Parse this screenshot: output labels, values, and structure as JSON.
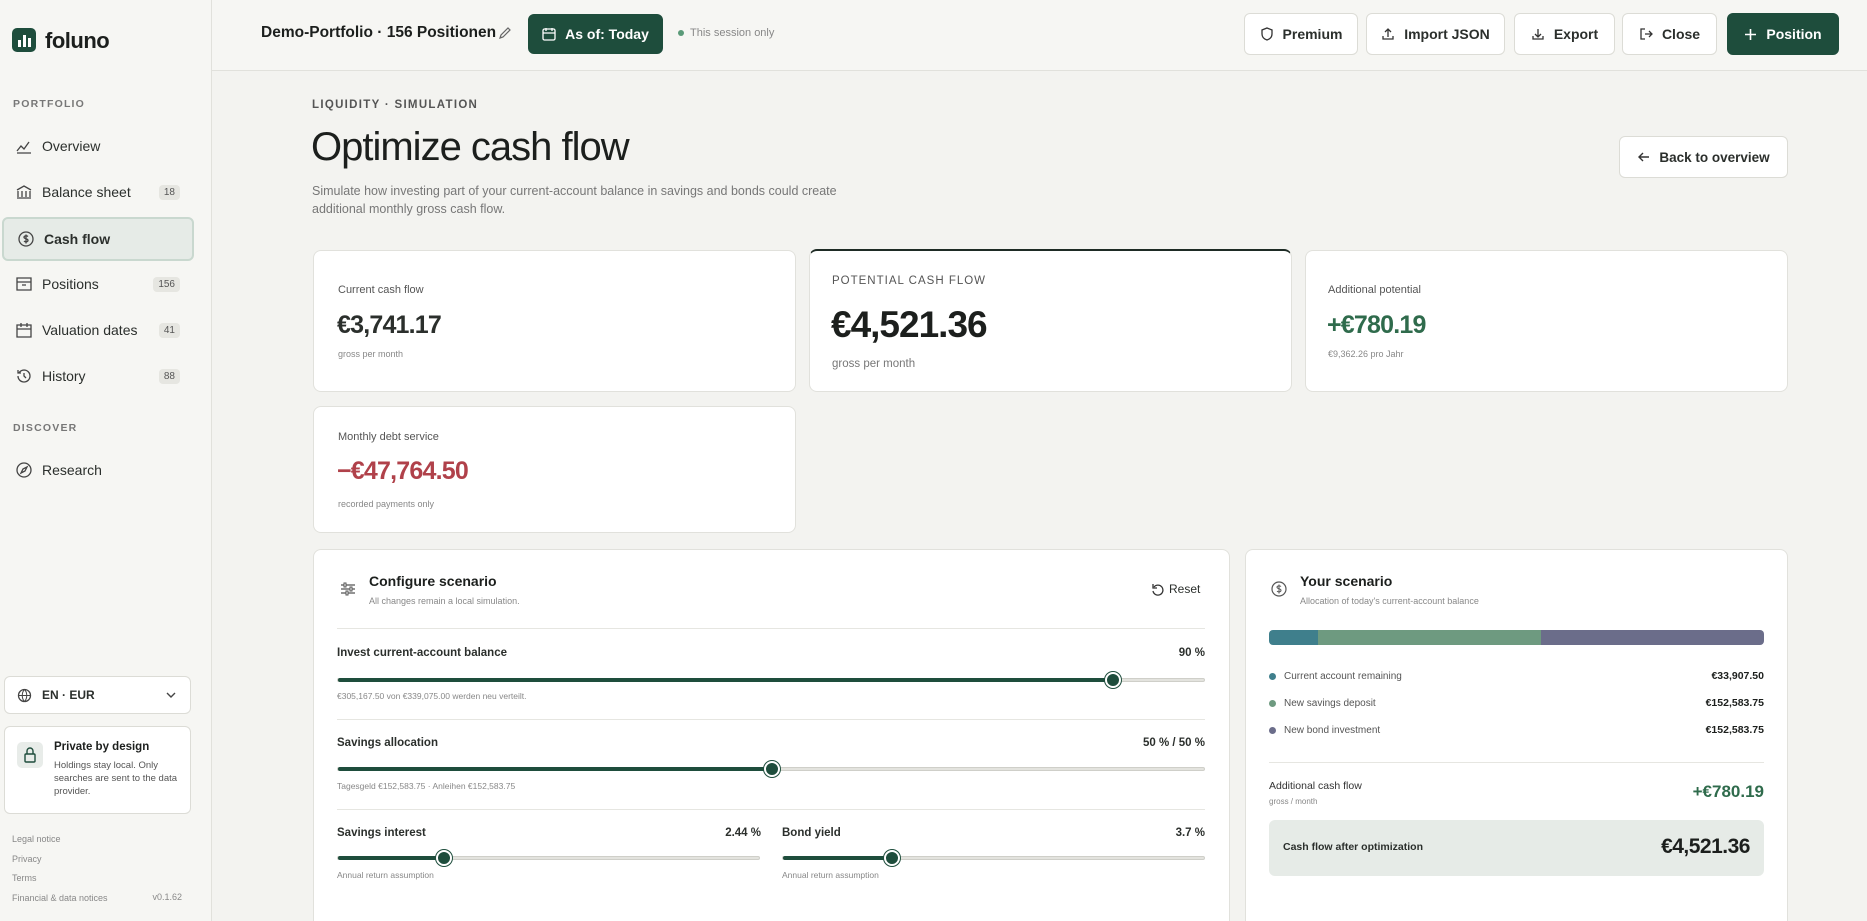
{
  "header": {
    "portfolio": "Demo-Portfolio · 156 Positionen",
    "as_of": "As of: Today",
    "session": "This session only",
    "actions": [
      "Premium",
      "Import JSON",
      "Export",
      "Close",
      "Position"
    ]
  },
  "sidebar": {
    "brand": "foluno",
    "sections": [
      {
        "title": "PORTFOLIO",
        "items": [
          {
            "label": "Overview"
          },
          {
            "label": "Balance sheet",
            "badge": 18
          },
          {
            "label": "Cash flow"
          },
          {
            "label": "Positions",
            "badge": 156
          },
          {
            "label": "Valuation dates",
            "badge": 41
          },
          {
            "label": "History",
            "badge": 88
          }
        ]
      },
      {
        "title": "DISCOVER",
        "items": [
          {
            "label": "Research"
          }
        ]
      }
    ],
    "language": "EN · EUR",
    "privacy": {
      "title": "Private by design",
      "text": "Holdings stay local. Only searches are sent to the data provider."
    },
    "footer": [
      "Legal notice",
      "Privacy",
      "Terms",
      "Financial & data notices"
    ],
    "version": "v0.1.62"
  },
  "page": {
    "eyebrow": "LIQUIDITY · SIMULATION",
    "title": "Optimize cash flow",
    "description": "Simulate how investing part of your current-account balance in savings and bonds could create additional monthly gross cash flow.",
    "back": "Back to overview"
  },
  "metrics": [
    {
      "label": "Current cash flow",
      "value": "€3,741.17",
      "note": "gross per month"
    },
    {
      "label": "POTENTIAL CASH FLOW",
      "value": "€4,521.36",
      "note": "gross per month"
    },
    {
      "label": "Additional potential",
      "value": "+€780.19",
      "note": "€9,362.26 pro Jahr"
    },
    {
      "label": "Monthly debt service",
      "value": "−€47,764.50",
      "note": "recorded payments only"
    }
  ],
  "configure": {
    "title": "Configure scenario",
    "subtitle": "All changes remain a local simulation.",
    "reset": "Reset",
    "invest": {
      "label": "Invest current-account balance",
      "value": "90 %",
      "hint": "€305,167.50 von €339,075.00 werden neu verteilt."
    },
    "allocation": {
      "label": "Savings allocation",
      "value": "50 % / 50 %",
      "hint": "Tagesgeld €152,583.75 · Anleihen €152,583.75"
    },
    "savings_interest": {
      "label": "Savings interest",
      "value": "2.44 %",
      "hint": "Annual return assumption"
    },
    "bond_yield": {
      "label": "Bond yield",
      "value": "3.7 %",
      "hint": "Annual return assumption"
    }
  },
  "scenario": {
    "title": "Your scenario",
    "subtitle": "Allocation of today's current-account balance",
    "legend": [
      {
        "label": "Current account remaining",
        "value": "€33,907.50"
      },
      {
        "label": "New savings deposit",
        "value": "€152,583.75"
      },
      {
        "label": "New bond investment",
        "value": "€152,583.75"
      }
    ],
    "additional": {
      "label": "Additional cash flow",
      "note": "gross / month",
      "value": "+€780.19"
    },
    "after": {
      "label": "Cash flow after optimization",
      "value": "€4,521.36"
    }
  }
}
